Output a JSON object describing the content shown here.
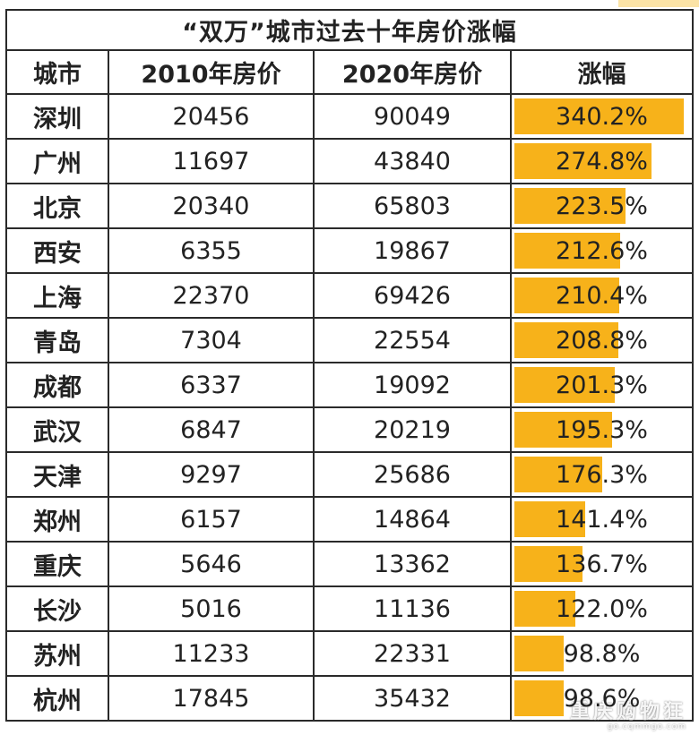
{
  "chart_data": {
    "type": "table",
    "title": "“双万”城市过去十年房价涨幅",
    "columns": [
      "城市",
      "2010年房价",
      "2020年房价",
      "涨幅"
    ],
    "rows": [
      {
        "city": "深圳",
        "p2010": "20456",
        "p2020": "90049",
        "growth": "340.2%",
        "growth_value": 340.2
      },
      {
        "city": "广州",
        "p2010": "11697",
        "p2020": "43840",
        "growth": "274.8%",
        "growth_value": 274.8
      },
      {
        "city": "北京",
        "p2010": "20340",
        "p2020": "65803",
        "growth": "223.5%",
        "growth_value": 223.5
      },
      {
        "city": "西安",
        "p2010": "6355",
        "p2020": "19867",
        "growth": "212.6%",
        "growth_value": 212.6
      },
      {
        "city": "上海",
        "p2010": "22370",
        "p2020": "69426",
        "growth": "210.4%",
        "growth_value": 210.4
      },
      {
        "city": "青岛",
        "p2010": "7304",
        "p2020": "22554",
        "growth": "208.8%",
        "growth_value": 208.8
      },
      {
        "city": "成都",
        "p2010": "6337",
        "p2020": "19092",
        "growth": "201.3%",
        "growth_value": 201.3
      },
      {
        "city": "武汉",
        "p2010": "6847",
        "p2020": "20219",
        "growth": "195.3%",
        "growth_value": 195.3
      },
      {
        "city": "天津",
        "p2010": "9297",
        "p2020": "25686",
        "growth": "176.3%",
        "growth_value": 176.3
      },
      {
        "city": "郑州",
        "p2010": "6157",
        "p2020": "14864",
        "growth": "141.4%",
        "growth_value": 141.4
      },
      {
        "city": "重庆",
        "p2010": "5646",
        "p2020": "13362",
        "growth": "136.7%",
        "growth_value": 136.7
      },
      {
        "city": "长沙",
        "p2010": "5016",
        "p2020": "11136",
        "growth": "122.0%",
        "growth_value": 122.0
      },
      {
        "city": "苏州",
        "p2010": "11233",
        "p2020": "22331",
        "growth": "98.8%",
        "growth_value": 98.8
      },
      {
        "city": "杭州",
        "p2010": "17845",
        "p2020": "35432",
        "growth": "98.6%",
        "growth_value": 98.6
      }
    ],
    "bar_color": "#f7b21a"
  },
  "watermark": {
    "main": "重庆购物狂",
    "sub": "go.cqmmgo.com"
  }
}
